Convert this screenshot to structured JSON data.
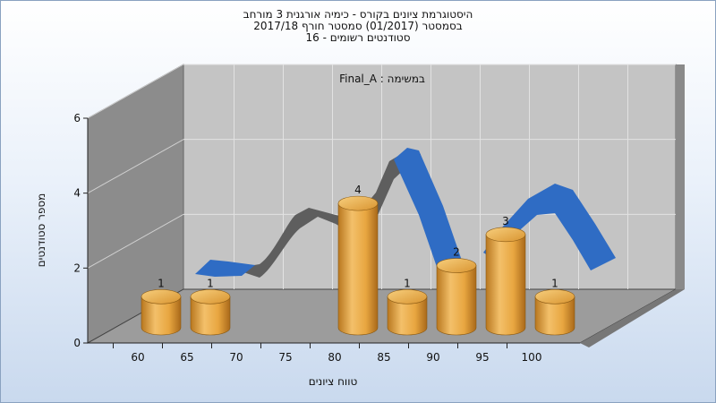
{
  "colors": {
    "bar": "#e8a640",
    "ribbon": "#2f6cc4",
    "ribbon_back": "#606060",
    "back_wall": "#bfbfbf",
    "side_wall": "#8c8c8c",
    "floor": "#999999"
  },
  "chart_data": {
    "type": "bar",
    "title": "היסטוגרמת ציונים בקורס - כימיה אורגנית 3 מורחב",
    "subtitle_lines": [
      "בסמסטר  (01/2017)  סמסטר חורף 2017/18",
      "סטודנטים רשומים - 16"
    ],
    "annotation": "במשימה : Final_A",
    "xlabel": "טווח ציונים",
    "ylabel": "מספר סטודנטים",
    "categories": [
      "60",
      "65",
      "70",
      "75",
      "80",
      "85",
      "90",
      "95",
      "100"
    ],
    "values": [
      1,
      1,
      0,
      0,
      4,
      1,
      2,
      3,
      1
    ],
    "ylim": [
      0,
      6
    ],
    "yticks": [
      "0",
      "2",
      "4",
      "6"
    ]
  }
}
